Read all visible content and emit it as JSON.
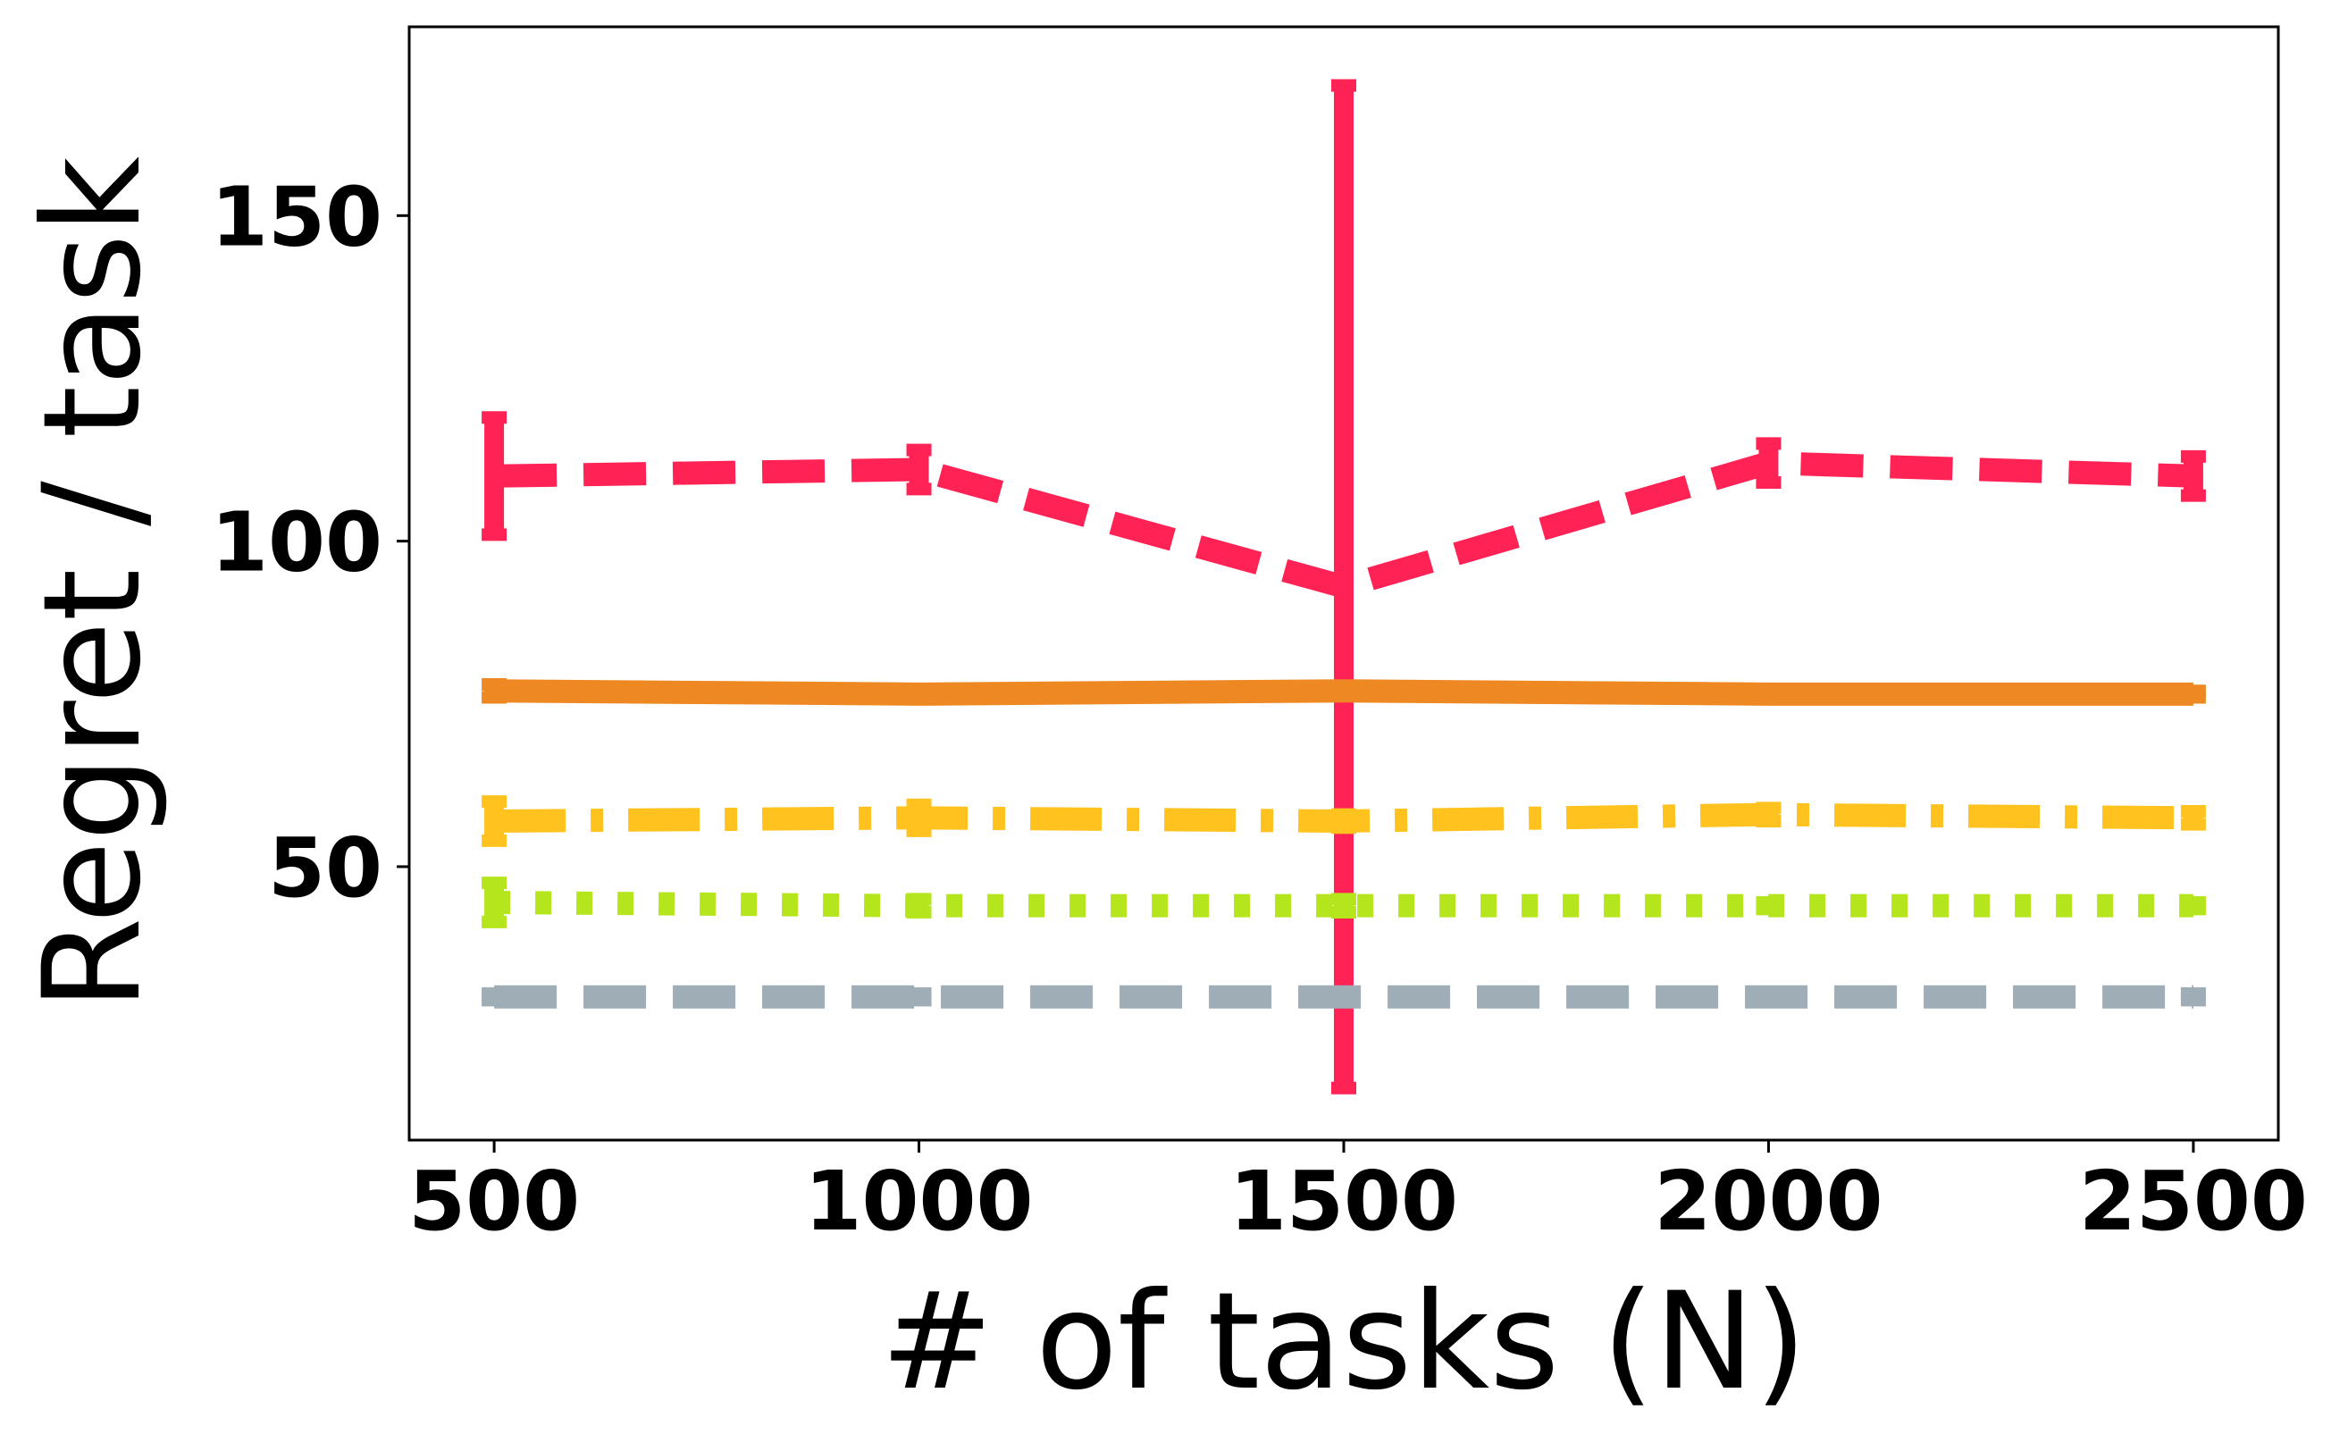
{
  "chart_data": {
    "type": "line",
    "xlabel": "# of tasks (N)",
    "ylabel": "Regret / task",
    "x": [
      500,
      1000,
      1500,
      2000,
      2500
    ],
    "xlim": [
      400,
      2600
    ],
    "ylim": [
      8,
      179
    ],
    "xticks": [
      500,
      1000,
      1500,
      2000,
      2500
    ],
    "yticks": [
      50,
      100,
      150
    ],
    "grid": false,
    "series": [
      {
        "values": [
          110,
          111,
          93,
          112,
          110
        ],
        "errors": [
          9,
          3,
          77,
          3,
          3
        ],
        "color": "#ff2255",
        "style": "dashed"
      },
      {
        "values": [
          77,
          76.5,
          77,
          76.5,
          76.5
        ],
        "errors": [
          1,
          0.5,
          0.5,
          0.5,
          0.5
        ],
        "color": "#ee8822",
        "style": "solid"
      },
      {
        "values": [
          57,
          57.5,
          57,
          58,
          57.5
        ],
        "errors": [
          3,
          2,
          1,
          1,
          1
        ],
        "color": "#ffc21f",
        "style": "dashdot"
      },
      {
        "values": [
          44.5,
          44,
          44,
          44,
          44
        ],
        "errors": [
          3,
          1,
          1,
          0.5,
          0.5
        ],
        "color": "#b5e61d",
        "style": "dotted"
      },
      {
        "values": [
          30,
          30,
          30,
          30,
          30
        ],
        "errors": [
          0.5,
          0.5,
          0.5,
          0.5,
          0.5
        ],
        "color": "#9fadb6",
        "style": "dashed"
      }
    ]
  }
}
